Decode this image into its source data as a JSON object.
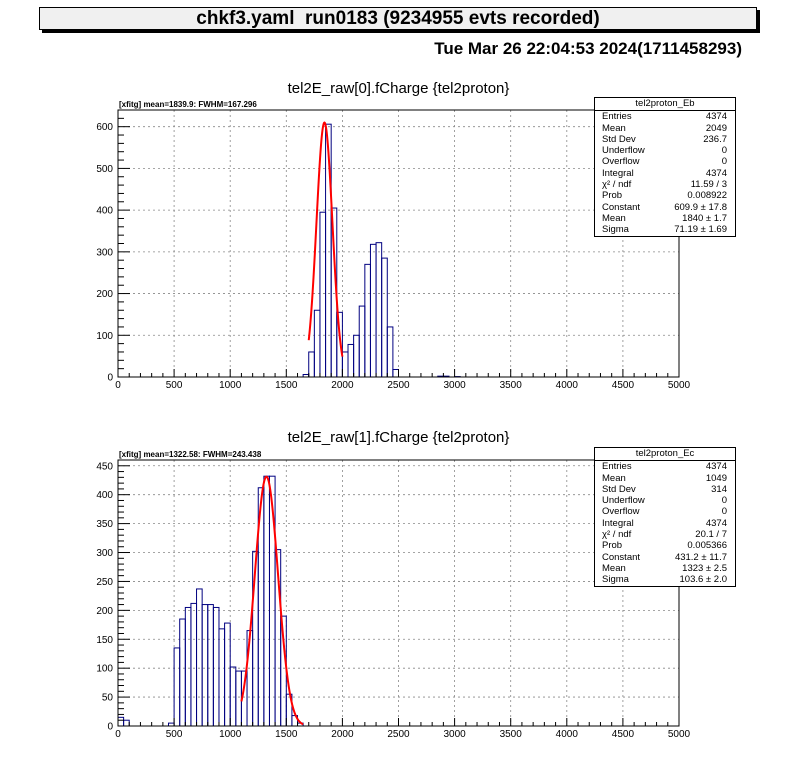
{
  "header": {
    "title": "chkf3.yaml  run0183 (9234955 evts recorded)",
    "datestamp": "Tue Mar 26 22:04:53 2024(1711458293)"
  },
  "colors": {
    "histogram": "#000080",
    "fit": "#ff0000",
    "axis": "#000000"
  },
  "panels": [
    {
      "id": "top",
      "title": "tel2E_raw[0].fCharge {tel2proton}",
      "fit_label": "[xfitg] mean=1839.9: FWHM=167.296",
      "stats": {
        "name": "tel2proton_Eb",
        "rows": [
          {
            "k": "Entries",
            "v": "4374"
          },
          {
            "k": "Mean",
            "v": "2049"
          },
          {
            "k": "Std Dev",
            "v": "236.7"
          },
          {
            "k": "Underflow",
            "v": "0"
          },
          {
            "k": "Overflow",
            "v": "0"
          },
          {
            "k": "Integral",
            "v": "4374"
          },
          {
            "k": "χ² / ndf",
            "v": "11.59 / 3"
          },
          {
            "k": "Prob",
            "v": "0.008922"
          },
          {
            "k": "Constant",
            "v": "609.9 ± 17.8"
          },
          {
            "k": "Mean",
            "v": "1840 ± 1.7"
          },
          {
            "k": "Sigma",
            "v": "71.19 ± 1.69"
          }
        ]
      }
    },
    {
      "id": "bottom",
      "title": "tel2E_raw[1].fCharge {tel2proton}",
      "fit_label": "[xfitg] mean=1322.58: FWHM=243.438",
      "stats": {
        "name": "tel2proton_Ec",
        "rows": [
          {
            "k": "Entries",
            "v": "4374"
          },
          {
            "k": "Mean",
            "v": "1049"
          },
          {
            "k": "Std Dev",
            "v": "314"
          },
          {
            "k": "Underflow",
            "v": "0"
          },
          {
            "k": "Overflow",
            "v": "0"
          },
          {
            "k": "Integral",
            "v": "4374"
          },
          {
            "k": "χ² / ndf",
            "v": "20.1 / 7"
          },
          {
            "k": "Prob",
            "v": "0.005366"
          },
          {
            "k": "Constant",
            "v": "431.2 ± 11.7"
          },
          {
            "k": "Mean",
            "v": "1323 ± 2.5"
          },
          {
            "k": "Sigma",
            "v": "103.6 ± 2.0"
          }
        ]
      }
    }
  ],
  "chart_data": [
    {
      "type": "bar",
      "title": "tel2E_raw[0].fCharge {tel2proton}",
      "xlabel": "",
      "ylabel": "",
      "xlim": [
        0,
        5000
      ],
      "ylim": [
        0,
        640
      ],
      "xticks": [
        0,
        500,
        1000,
        1500,
        2000,
        2500,
        3000,
        3500,
        4000,
        4500,
        5000
      ],
      "yticks": [
        0,
        100,
        200,
        300,
        400,
        500,
        600
      ],
      "grid": true,
      "bin_width": 50,
      "bins": [
        [
          1650,
          6
        ],
        [
          1700,
          60
        ],
        [
          1750,
          160
        ],
        [
          1800,
          395
        ],
        [
          1850,
          606
        ],
        [
          1900,
          405
        ],
        [
          1950,
          155
        ],
        [
          2000,
          60
        ],
        [
          2050,
          78
        ],
        [
          2100,
          100
        ],
        [
          2150,
          170
        ],
        [
          2200,
          270
        ],
        [
          2250,
          318
        ],
        [
          2300,
          322
        ],
        [
          2350,
          285
        ],
        [
          2400,
          120
        ],
        [
          2450,
          18
        ],
        [
          2850,
          2
        ],
        [
          2900,
          2
        ],
        [
          3000,
          1
        ]
      ],
      "fit": {
        "function": "gaus",
        "constant": 609.9,
        "mean": 1840,
        "sigma": 71.19,
        "range": [
          1700,
          2000
        ]
      },
      "legend": "top-right"
    },
    {
      "type": "bar",
      "title": "tel2E_raw[1].fCharge {tel2proton}",
      "xlabel": "",
      "ylabel": "",
      "xlim": [
        0,
        5000
      ],
      "ylim": [
        0,
        460
      ],
      "xticks": [
        0,
        500,
        1000,
        1500,
        2000,
        2500,
        3000,
        3500,
        4000,
        4500,
        5000
      ],
      "yticks": [
        0,
        50,
        100,
        150,
        200,
        250,
        300,
        350,
        400,
        450
      ],
      "grid": true,
      "bin_width": 50,
      "bins": [
        [
          0,
          15
        ],
        [
          50,
          10
        ],
        [
          450,
          5
        ],
        [
          500,
          135
        ],
        [
          550,
          185
        ],
        [
          600,
          205
        ],
        [
          650,
          212
        ],
        [
          700,
          237
        ],
        [
          750,
          210
        ],
        [
          800,
          210
        ],
        [
          850,
          205
        ],
        [
          900,
          168
        ],
        [
          950,
          178
        ],
        [
          1000,
          102
        ],
        [
          1050,
          95
        ],
        [
          1100,
          95
        ],
        [
          1150,
          165
        ],
        [
          1200,
          302
        ],
        [
          1250,
          412
        ],
        [
          1300,
          432
        ],
        [
          1350,
          432
        ],
        [
          1400,
          305
        ],
        [
          1450,
          190
        ],
        [
          1500,
          55
        ],
        [
          1550,
          18
        ],
        [
          1600,
          5
        ]
      ],
      "fit": {
        "function": "gaus",
        "constant": 431.2,
        "mean": 1323,
        "sigma": 103.6,
        "range": [
          1100,
          1650
        ]
      },
      "legend": "top-right"
    }
  ]
}
